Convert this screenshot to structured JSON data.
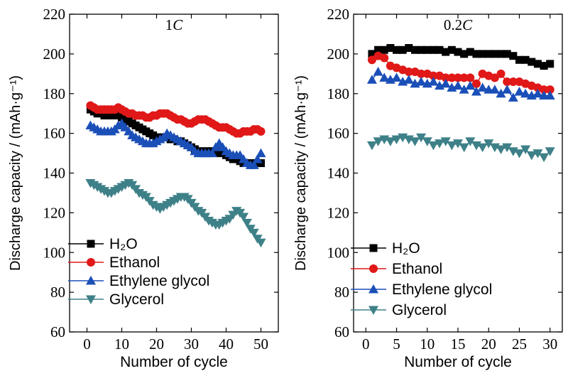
{
  "colors": {
    "H2O": "#000000",
    "Ethanol": "#e01818",
    "Ethylene glycol": "#1b4fb8",
    "Glycerol": "#3e8088"
  },
  "chart_data": [
    {
      "type": "line",
      "panel_label": "1C",
      "rate_value": "1",
      "rate_unit": "C",
      "xlabel": "Number of cycle",
      "ylabel": "Discharge capacity / (mAh·g⁻¹)",
      "xlim": [
        -5,
        55
      ],
      "ylim": [
        60,
        220
      ],
      "xticks": [
        0,
        10,
        20,
        30,
        40,
        50
      ],
      "yticks": [
        60,
        80,
        100,
        120,
        140,
        160,
        180,
        200,
        220
      ],
      "legend_position": "bottom-left",
      "series": [
        {
          "name": "H2O",
          "label": "H₂O",
          "marker": "square",
          "x": [
            1,
            2,
            3,
            4,
            5,
            6,
            7,
            8,
            9,
            10,
            11,
            12,
            13,
            14,
            15,
            16,
            17,
            18,
            19,
            20,
            21,
            22,
            23,
            24,
            25,
            26,
            27,
            28,
            29,
            30,
            31,
            32,
            33,
            34,
            35,
            36,
            37,
            38,
            39,
            40,
            41,
            42,
            43,
            44,
            45,
            46,
            47,
            48,
            49,
            50
          ],
          "y": [
            172,
            171,
            170,
            170,
            169,
            169,
            169,
            169,
            169,
            168,
            167,
            166,
            165,
            164,
            163,
            162,
            161,
            160,
            159,
            158,
            158,
            158,
            158,
            157,
            157,
            156,
            156,
            155,
            154,
            153,
            152,
            151,
            151,
            151,
            151,
            151,
            151,
            150,
            150,
            149,
            148,
            147,
            147,
            146,
            145,
            145,
            145,
            145,
            145,
            145
          ]
        },
        {
          "name": "Ethanol",
          "label": "Ethanol",
          "marker": "circle",
          "x": [
            1,
            2,
            3,
            4,
            5,
            6,
            7,
            8,
            9,
            10,
            11,
            12,
            13,
            14,
            15,
            16,
            17,
            18,
            19,
            20,
            21,
            22,
            23,
            24,
            25,
            26,
            27,
            28,
            29,
            30,
            31,
            32,
            33,
            34,
            35,
            36,
            37,
            38,
            39,
            40,
            41,
            42,
            43,
            44,
            45,
            46,
            47,
            48,
            49,
            50
          ],
          "y": [
            174,
            173,
            172,
            172,
            172,
            172,
            172,
            172,
            173,
            172,
            171,
            170,
            170,
            169,
            169,
            169,
            168,
            168,
            169,
            169,
            170,
            170,
            170,
            169,
            168,
            167,
            167,
            166,
            165,
            165,
            166,
            167,
            167,
            167,
            166,
            165,
            164,
            163,
            163,
            163,
            162,
            161,
            160,
            160,
            161,
            161,
            161,
            162,
            162,
            161
          ]
        },
        {
          "name": "Ethylene glycol",
          "label": "Ethylene glycol",
          "marker": "triangle-up",
          "x": [
            1,
            2,
            3,
            4,
            5,
            6,
            7,
            8,
            9,
            10,
            11,
            12,
            13,
            14,
            15,
            16,
            17,
            18,
            19,
            20,
            21,
            22,
            23,
            24,
            25,
            26,
            27,
            28,
            29,
            30,
            31,
            32,
            33,
            34,
            35,
            36,
            37,
            38,
            39,
            40,
            41,
            42,
            43,
            44,
            45,
            46,
            47,
            48,
            49,
            50
          ],
          "y": [
            164,
            163,
            162,
            161,
            161,
            161,
            161,
            162,
            164,
            165,
            163,
            161,
            159,
            158,
            157,
            156,
            155,
            155,
            155,
            156,
            157,
            158,
            160,
            159,
            158,
            157,
            156,
            155,
            154,
            153,
            151,
            150,
            150,
            150,
            150,
            150,
            153,
            155,
            153,
            151,
            150,
            149,
            149,
            149,
            147,
            145,
            144,
            144,
            147,
            150
          ]
        },
        {
          "name": "Glycerol",
          "label": "Glycerol",
          "marker": "triangle-down",
          "x": [
            1,
            2,
            3,
            4,
            5,
            6,
            7,
            8,
            9,
            10,
            11,
            12,
            13,
            14,
            15,
            16,
            17,
            18,
            19,
            20,
            21,
            22,
            23,
            24,
            25,
            26,
            27,
            28,
            29,
            30,
            31,
            32,
            33,
            34,
            35,
            36,
            37,
            38,
            39,
            40,
            41,
            42,
            43,
            44,
            45,
            46,
            47,
            48,
            49,
            50
          ],
          "y": [
            135,
            134,
            133,
            132,
            131,
            130,
            130,
            131,
            132,
            133,
            134,
            135,
            134,
            132,
            130,
            129,
            128,
            126,
            124,
            123,
            122,
            123,
            124,
            125,
            126,
            127,
            128,
            128,
            127,
            125,
            123,
            121,
            120,
            118,
            116,
            115,
            114,
            114,
            115,
            116,
            117,
            119,
            121,
            120,
            118,
            115,
            112,
            110,
            107,
            105
          ]
        }
      ]
    },
    {
      "type": "line",
      "panel_label": "0.2C",
      "rate_value": "0.2",
      "rate_unit": "C",
      "xlabel": "Number of cycle",
      "ylabel": "Discharge capacity / (mAh·g⁻¹)",
      "xlim": [
        -2,
        32
      ],
      "ylim": [
        60,
        220
      ],
      "xticks": [
        0,
        5,
        10,
        15,
        20,
        25,
        30
      ],
      "yticks": [
        60,
        80,
        100,
        120,
        140,
        160,
        180,
        200,
        220
      ],
      "legend_position": "bottom-left",
      "series": [
        {
          "name": "H2O",
          "label": "H₂O",
          "marker": "square",
          "x": [
            1,
            2,
            3,
            4,
            5,
            6,
            7,
            8,
            9,
            10,
            11,
            12,
            13,
            14,
            15,
            16,
            17,
            18,
            19,
            20,
            21,
            22,
            23,
            24,
            25,
            26,
            27,
            28,
            29,
            30
          ],
          "y": [
            200,
            202,
            202,
            203,
            202,
            202,
            203,
            202,
            202,
            202,
            202,
            202,
            201,
            202,
            201,
            200,
            201,
            200,
            200,
            200,
            200,
            200,
            200,
            199,
            197,
            197,
            196,
            195,
            194,
            195
          ]
        },
        {
          "name": "Ethanol",
          "label": "Ethanol",
          "marker": "circle",
          "x": [
            1,
            2,
            3,
            4,
            5,
            6,
            7,
            8,
            9,
            10,
            11,
            12,
            13,
            14,
            15,
            16,
            17,
            18,
            19,
            20,
            21,
            22,
            23,
            24,
            25,
            26,
            27,
            28,
            29,
            30
          ],
          "y": [
            197,
            199,
            198,
            194,
            193,
            192,
            191,
            191,
            190,
            190,
            189,
            189,
            188,
            188,
            188,
            188,
            188,
            185,
            190,
            189,
            188,
            190,
            186,
            186,
            186,
            185,
            184,
            183,
            182,
            182
          ]
        },
        {
          "name": "Ethylene glycol",
          "label": "Ethylene glycol",
          "marker": "triangle-up",
          "x": [
            1,
            2,
            3,
            4,
            5,
            6,
            7,
            8,
            9,
            10,
            11,
            12,
            13,
            14,
            15,
            16,
            17,
            18,
            19,
            20,
            21,
            22,
            23,
            24,
            25,
            26,
            27,
            28,
            29,
            30
          ],
          "y": [
            187,
            191,
            188,
            187,
            188,
            186,
            187,
            185,
            186,
            185,
            186,
            184,
            185,
            183,
            184,
            182,
            184,
            181,
            183,
            182,
            182,
            180,
            182,
            178,
            181,
            180,
            179,
            180,
            179,
            179
          ]
        },
        {
          "name": "Glycerol",
          "label": "Glycerol",
          "marker": "triangle-down",
          "x": [
            1,
            2,
            3,
            4,
            5,
            6,
            7,
            8,
            9,
            10,
            11,
            12,
            13,
            14,
            15,
            16,
            17,
            18,
            19,
            20,
            21,
            22,
            23,
            24,
            25,
            26,
            27,
            28,
            29,
            30
          ],
          "y": [
            154,
            156,
            157,
            156,
            157,
            158,
            157,
            156,
            158,
            156,
            154,
            155,
            156,
            154,
            155,
            153,
            156,
            154,
            153,
            155,
            153,
            152,
            153,
            151,
            150,
            152,
            149,
            150,
            148,
            151
          ]
        }
      ]
    }
  ]
}
